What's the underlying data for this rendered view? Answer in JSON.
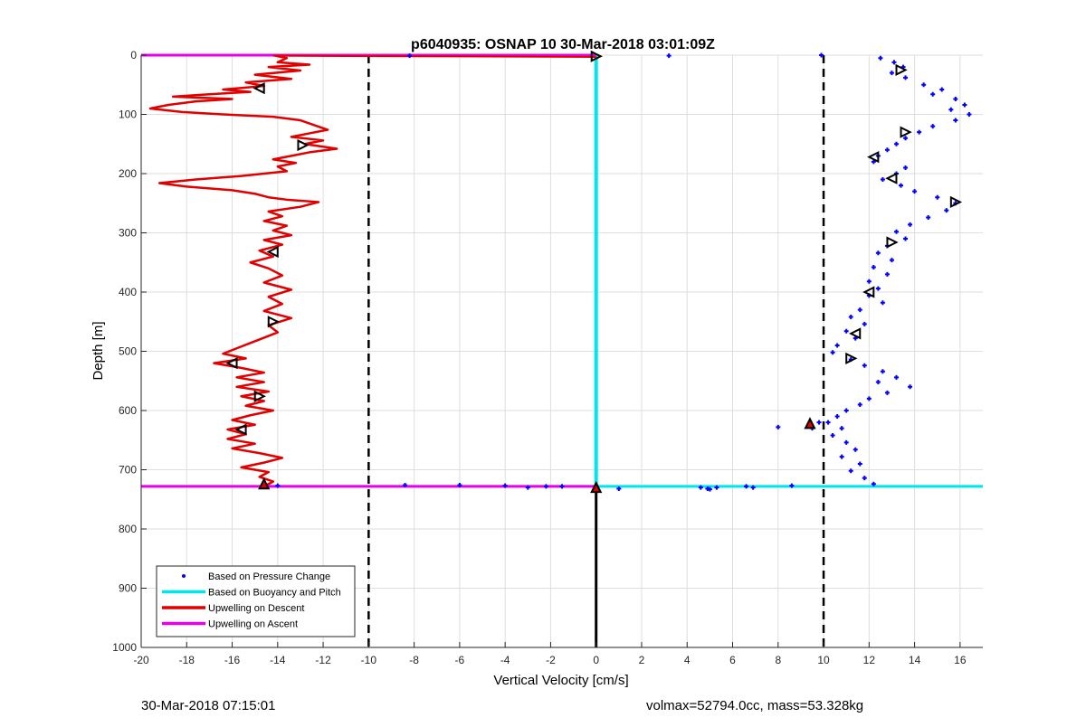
{
  "chart_data": {
    "type": "scatter",
    "title": "p6040935: OSNAP 10 30-Mar-2018 03:01:09Z",
    "xlabel": "Vertical Velocity [cm/s]",
    "ylabel": "Depth [m]",
    "xlim": [
      -20,
      17
    ],
    "ylim": [
      1000,
      0
    ],
    "y_reversed": true,
    "grid": true,
    "xticks": [
      -20,
      -18,
      -16,
      -14,
      -12,
      -10,
      -8,
      -6,
      -4,
      -2,
      0,
      2,
      4,
      6,
      8,
      10,
      12,
      14,
      16
    ],
    "yticks": [
      0,
      100,
      200,
      300,
      400,
      500,
      600,
      700,
      800,
      900,
      1000
    ],
    "legend_placement": "bottom-left",
    "legend": [
      {
        "label": "Based on Pressure Change",
        "color": "#0000ff",
        "style": "dot"
      },
      {
        "label": "Based on Buoyancy and Pitch",
        "color": "#00e5ee",
        "style": "line"
      },
      {
        "label": "Upwelling on Descent",
        "color": "#e00000",
        "style": "line"
      },
      {
        "label": "Upwelling on Ascent",
        "color": "#e600e6",
        "style": "line"
      }
    ],
    "reference_lines": {
      "dashed_x": [
        -10,
        10
      ],
      "black_vertical": {
        "x": 0,
        "from_depth": 728,
        "to_depth": 1000
      },
      "ascent_depths": [
        0,
        728
      ],
      "buoyancy_horizontal": {
        "depth": 728,
        "from_x": 0,
        "to_x": 17
      }
    },
    "series": [
      {
        "name": "Upwelling on Descent",
        "color": "#e00000",
        "points": [
          [
            -14.2,
            0
          ],
          [
            -13.6,
            5
          ],
          [
            -14.0,
            12
          ],
          [
            -12.6,
            16
          ],
          [
            -14.4,
            20
          ],
          [
            -13.0,
            26
          ],
          [
            -15.0,
            33
          ],
          [
            -13.4,
            40
          ],
          [
            -15.4,
            46
          ],
          [
            -14.6,
            52
          ],
          [
            -16.4,
            58
          ],
          [
            -15.2,
            62
          ],
          [
            -17.0,
            66
          ],
          [
            -18.6,
            70
          ],
          [
            -16.0,
            74
          ],
          [
            -17.6,
            78
          ],
          [
            -18.8,
            84
          ],
          [
            -19.6,
            90
          ],
          [
            -18.2,
            96
          ],
          [
            -16.4,
            100
          ],
          [
            -14.2,
            104
          ],
          [
            -13.0,
            110
          ],
          [
            -12.4,
            118
          ],
          [
            -11.8,
            126
          ],
          [
            -12.6,
            132
          ],
          [
            -13.4,
            138
          ],
          [
            -12.0,
            144
          ],
          [
            -12.8,
            150
          ],
          [
            -11.4,
            158
          ],
          [
            -12.6,
            164
          ],
          [
            -13.4,
            170
          ],
          [
            -14.2,
            176
          ],
          [
            -13.2,
            182
          ],
          [
            -14.0,
            188
          ],
          [
            -13.6,
            196
          ],
          [
            -15.6,
            204
          ],
          [
            -17.6,
            210
          ],
          [
            -19.2,
            216
          ],
          [
            -18.0,
            222
          ],
          [
            -16.0,
            228
          ],
          [
            -15.0,
            234
          ],
          [
            -14.4,
            240
          ],
          [
            -13.6,
            244
          ],
          [
            -12.2,
            248
          ],
          [
            -13.0,
            256
          ],
          [
            -14.4,
            264
          ],
          [
            -13.8,
            272
          ],
          [
            -14.6,
            280
          ],
          [
            -13.6,
            288
          ],
          [
            -14.2,
            296
          ],
          [
            -13.4,
            304
          ],
          [
            -14.6,
            312
          ],
          [
            -13.8,
            320
          ],
          [
            -14.8,
            330
          ],
          [
            -14.2,
            340
          ],
          [
            -15.2,
            350
          ],
          [
            -14.4,
            360
          ],
          [
            -13.8,
            372
          ],
          [
            -14.6,
            384
          ],
          [
            -13.4,
            396
          ],
          [
            -14.4,
            408
          ],
          [
            -13.8,
            420
          ],
          [
            -14.6,
            432
          ],
          [
            -13.4,
            444
          ],
          [
            -14.4,
            456
          ],
          [
            -14.0,
            468
          ],
          [
            -14.8,
            480
          ],
          [
            -15.6,
            492
          ],
          [
            -16.4,
            504
          ],
          [
            -15.4,
            512
          ],
          [
            -16.8,
            520
          ],
          [
            -15.6,
            528
          ],
          [
            -14.6,
            536
          ],
          [
            -15.8,
            544
          ],
          [
            -14.6,
            552
          ],
          [
            -15.8,
            560
          ],
          [
            -14.4,
            568
          ],
          [
            -15.6,
            576
          ],
          [
            -14.6,
            584
          ],
          [
            -15.4,
            592
          ],
          [
            -14.2,
            600
          ],
          [
            -15.2,
            608
          ],
          [
            -16.0,
            616
          ],
          [
            -15.0,
            624
          ],
          [
            -16.2,
            632
          ],
          [
            -15.4,
            640
          ],
          [
            -16.2,
            648
          ],
          [
            -15.0,
            656
          ],
          [
            -16.0,
            664
          ],
          [
            -14.8,
            672
          ],
          [
            -13.8,
            680
          ],
          [
            -14.6,
            688
          ],
          [
            -15.6,
            696
          ],
          [
            -14.4,
            704
          ],
          [
            -14.8,
            712
          ],
          [
            -14.2,
            720
          ],
          [
            -14.6,
            728
          ]
        ]
      },
      {
        "name": "Based on Buoyancy and Pitch",
        "color": "#00e5ee",
        "points": [
          [
            0,
            0
          ],
          [
            0,
            728
          ]
        ]
      },
      {
        "name": "Based on Pressure Change",
        "color": "#0000ff",
        "points": [
          [
            12.5,
            5
          ],
          [
            13.1,
            12
          ],
          [
            13.5,
            20
          ],
          [
            13.0,
            30
          ],
          [
            13.6,
            38
          ],
          [
            14.4,
            50
          ],
          [
            15.2,
            58
          ],
          [
            14.8,
            66
          ],
          [
            15.8,
            74
          ],
          [
            16.2,
            84
          ],
          [
            15.6,
            92
          ],
          [
            16.4,
            100
          ],
          [
            15.8,
            110
          ],
          [
            14.8,
            120
          ],
          [
            14.2,
            130
          ],
          [
            13.6,
            140
          ],
          [
            13.2,
            150
          ],
          [
            12.8,
            160
          ],
          [
            12.4,
            170
          ],
          [
            12.2,
            180
          ],
          [
            13.6,
            190
          ],
          [
            13.2,
            200
          ],
          [
            12.6,
            210
          ],
          [
            13.4,
            220
          ],
          [
            14.0,
            230
          ],
          [
            15.0,
            240
          ],
          [
            15.8,
            250
          ],
          [
            15.4,
            262
          ],
          [
            14.6,
            274
          ],
          [
            13.8,
            286
          ],
          [
            13.2,
            298
          ],
          [
            13.6,
            310
          ],
          [
            12.8,
            322
          ],
          [
            12.4,
            334
          ],
          [
            13.0,
            346
          ],
          [
            12.2,
            358
          ],
          [
            12.8,
            370
          ],
          [
            12.0,
            382
          ],
          [
            12.4,
            394
          ],
          [
            12.0,
            406
          ],
          [
            12.6,
            418
          ],
          [
            11.6,
            430
          ],
          [
            11.2,
            442
          ],
          [
            11.8,
            454
          ],
          [
            11.0,
            466
          ],
          [
            11.4,
            478
          ],
          [
            10.6,
            490
          ],
          [
            10.4,
            502
          ],
          [
            11.2,
            514
          ],
          [
            11.8,
            524
          ],
          [
            12.6,
            534
          ],
          [
            13.2,
            544
          ],
          [
            12.4,
            552
          ],
          [
            13.8,
            560
          ],
          [
            12.8,
            570
          ],
          [
            12.0,
            580
          ],
          [
            11.6,
            590
          ],
          [
            11.0,
            600
          ],
          [
            10.6,
            610
          ],
          [
            10.2,
            620
          ],
          [
            10.8,
            630
          ],
          [
            10.4,
            642
          ],
          [
            11.0,
            654
          ],
          [
            11.4,
            666
          ],
          [
            10.8,
            678
          ],
          [
            11.6,
            690
          ],
          [
            11.2,
            702
          ],
          [
            11.8,
            714
          ],
          [
            12.2,
            724
          ],
          [
            8.0,
            628
          ],
          [
            9.5,
            630
          ],
          [
            9.8,
            620
          ],
          [
            3.2,
            1
          ],
          [
            -8.2,
            1
          ],
          [
            9.9,
            0
          ],
          [
            -2.2,
            728
          ],
          [
            -4.0,
            727
          ],
          [
            -6.0,
            726
          ],
          [
            -8.4,
            726
          ],
          [
            -14.0,
            727
          ],
          [
            -3.0,
            730
          ],
          [
            -1.5,
            728
          ],
          [
            1.0,
            732
          ],
          [
            4.6,
            730
          ],
          [
            4.9,
            732
          ],
          [
            5.3,
            730
          ],
          [
            6.6,
            728
          ],
          [
            6.9,
            730
          ],
          [
            8.6,
            727
          ],
          [
            5.0,
            733
          ]
        ]
      }
    ],
    "markers": [
      {
        "x": 0,
        "depth": 2,
        "shape": "triangle-right"
      },
      {
        "x": 13.4,
        "depth": 25,
        "shape": "triangle-right"
      },
      {
        "x": -14.8,
        "depth": 56,
        "shape": "triangle-left"
      },
      {
        "x": 13.6,
        "depth": 130,
        "shape": "triangle-right"
      },
      {
        "x": -12.9,
        "depth": 152,
        "shape": "triangle-right"
      },
      {
        "x": 12.2,
        "depth": 172,
        "shape": "triangle-left"
      },
      {
        "x": 13.0,
        "depth": 208,
        "shape": "triangle-left"
      },
      {
        "x": 15.8,
        "depth": 248,
        "shape": "triangle-right"
      },
      {
        "x": 13.0,
        "depth": 316,
        "shape": "triangle-right"
      },
      {
        "x": -14.2,
        "depth": 332,
        "shape": "triangle-left"
      },
      {
        "x": 12.0,
        "depth": 400,
        "shape": "triangle-left"
      },
      {
        "x": -14.2,
        "depth": 450,
        "shape": "triangle-right"
      },
      {
        "x": 11.4,
        "depth": 470,
        "shape": "triangle-left"
      },
      {
        "x": 11.2,
        "depth": 512,
        "shape": "triangle-right"
      },
      {
        "x": -16.0,
        "depth": 520,
        "shape": "triangle-left"
      },
      {
        "x": -14.8,
        "depth": 576,
        "shape": "triangle-right"
      },
      {
        "x": 9.4,
        "depth": 622,
        "shape": "triangle-up-red"
      },
      {
        "x": -15.6,
        "depth": 632,
        "shape": "triangle-left"
      },
      {
        "x": -14.6,
        "depth": 724,
        "shape": "triangle-up-red"
      },
      {
        "x": 0,
        "depth": 730,
        "shape": "triangle-up-red"
      }
    ]
  },
  "footer": {
    "timestamp": "30-Mar-2018 07:15:01",
    "stats": "volmax=52794.0cc, mass=53.328kg"
  }
}
